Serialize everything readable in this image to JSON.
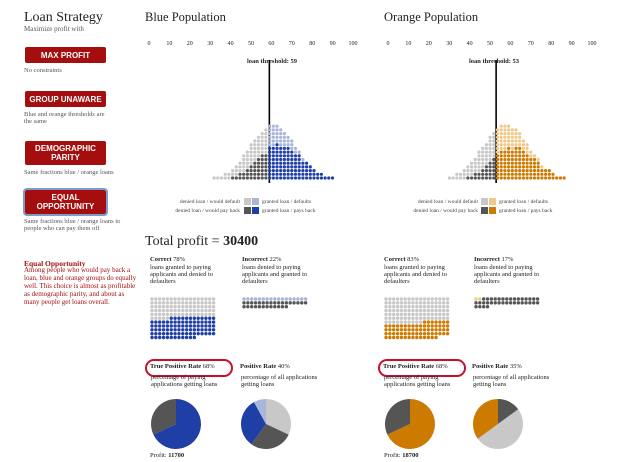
{
  "sidebar": {
    "title": "Loan Strategy",
    "subtitle": "Maximize profit with",
    "buttons": [
      {
        "label": "MAX PROFIT",
        "desc": "No constraints"
      },
      {
        "label": "GROUP UNAWARE",
        "desc": "Blue and orange thresholds are the same"
      },
      {
        "label": "DEMOGRAPHIC PARITY",
        "desc": "Same fractions blue / orange loans"
      },
      {
        "label": "EQUAL OPPORTUNITY",
        "desc": "Same fractions blue / orange loans to people who can pay them off"
      }
    ],
    "explain_title": "Equal Opportunity",
    "explain_text": "Among people who would pay back a loan, blue and orange groups do equally well. This choice is almost as profitable as demographic parity, and about as many people get loans overall."
  },
  "axis_ticks": [
    "0",
    "10",
    "20",
    "30",
    "40",
    "50",
    "60",
    "70",
    "80",
    "90",
    "100"
  ],
  "blue": {
    "title": "Blue Population",
    "threshold_label": "loan threshold: 59",
    "threshold": 59,
    "legend": {
      "denied_default": "denied loan / would default",
      "denied_payback": "denied loan / would pay back",
      "granted_default": "granted loan / defaults",
      "granted_payback": "granted loan / pays back"
    },
    "correct_head": "Correct",
    "correct_pct": "78%",
    "correct_text": "loans granted to paying applicants and denied to defaulters",
    "incorrect_head": "Incorrect",
    "incorrect_pct": "22%",
    "incorrect_text": "loans denied to paying applicants and granted to defaulters",
    "tpr_head": "True Positive Rate",
    "tpr_pct": "68%",
    "tpr_text": "percentage of paying applications getting loans",
    "pr_head": "Positive Rate",
    "pr_pct": "40%",
    "pr_text": "percentage of all applications getting loans",
    "profit_label": "Profit:",
    "profit_value": "11700",
    "tpr": 0.68,
    "pr": 0.4
  },
  "orange": {
    "title": "Orange Population",
    "threshold_label": "loan threshold: 53",
    "threshold": 53,
    "legend": {
      "denied_default": "denied loan / would default",
      "denied_payback": "denied loan / would pay back",
      "granted_default": "granted loan / defaults",
      "granted_payback": "granted loan / pays back"
    },
    "correct_head": "Correct",
    "correct_pct": "83%",
    "correct_text": "loans granted to paying applicants and denied to defaulters",
    "incorrect_head": "Incorrect",
    "incorrect_pct": "17%",
    "incorrect_text": "loans denied to paying applicants and granted to defaulters",
    "tpr_head": "True Positive Rate",
    "tpr_pct": "68%",
    "tpr_text": "percentage of paying applications getting loans",
    "pr_head": "Positive Rate",
    "pr_pct": "35%",
    "pr_text": "percentage of all applications getting loans",
    "profit_label": "Profit:",
    "profit_value": "18700",
    "tpr": 0.68,
    "pr": 0.35
  },
  "total_profit_label": "Total profit =",
  "total_profit_value": "30400",
  "colors": {
    "blue": "#1f3fa6",
    "blue_light": "#a9b6d9",
    "orange": "#cc7a00",
    "orange_light": "#f0c98a",
    "dark_gray": "#555555",
    "light_gray": "#c8c8c8",
    "button_red": "#a50e0e",
    "highlight_red": "#c8102e"
  }
}
